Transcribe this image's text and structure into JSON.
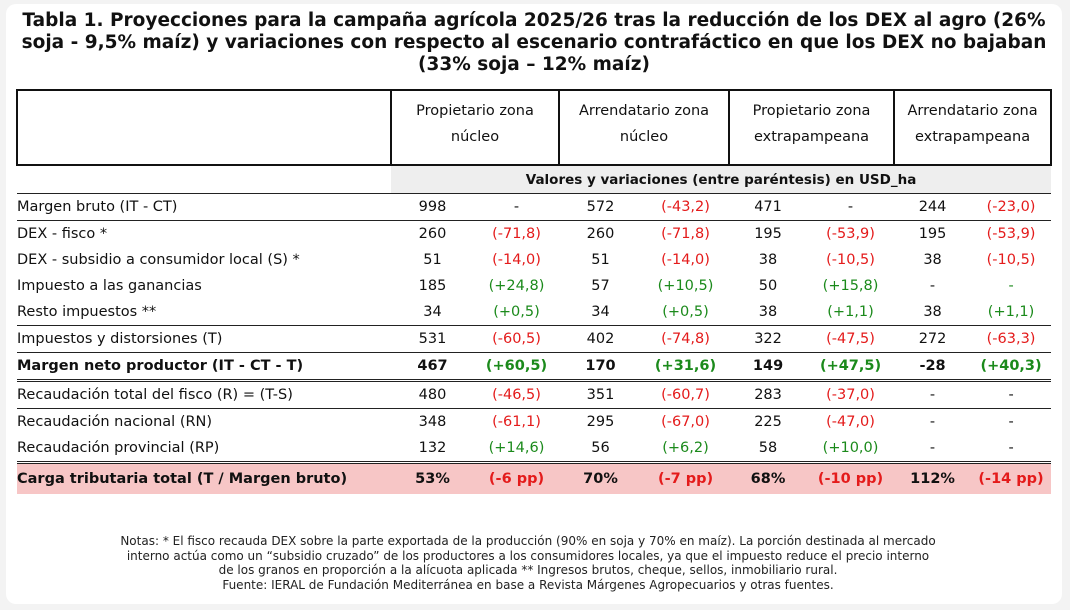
{
  "title": "Tabla 1. Proyecciones para la campaña agrícola 2025/26 tras la reducción de los DEX al agro (26% soja - 9,5% maíz) y variaciones con respecto al escenario contrafáctico en que los DEX no bajaban (33% soja – 12% maíz)",
  "columns": [
    {
      "line1": "Propietario zona",
      "line2": "núcleo"
    },
    {
      "line1": "Arrendatario zona",
      "line2": "núcleo"
    },
    {
      "line1": "Propietario zona",
      "line2": "extrapampeana"
    },
    {
      "line1": "Arrendatario zona",
      "line2": "extrapampeana"
    }
  ],
  "units_label": "Valores y variaciones (entre paréntesis) en USD_ha",
  "rows": [
    {
      "label": "Margen bruto (IT - CT)",
      "cells": [
        "998",
        "-",
        "572",
        "(-43,2)",
        "471",
        "-",
        "244",
        "(-23,0)"
      ]
    },
    {
      "label": "DEX - fisco *",
      "cells": [
        "260",
        "(-71,8)",
        "260",
        "(-71,8)",
        "195",
        "(-53,9)",
        "195",
        "(-53,9)"
      ]
    },
    {
      "label": "DEX - subsidio a consumidor local (S) *",
      "cells": [
        "51",
        "(-14,0)",
        "51",
        "(-14,0)",
        "38",
        "(-10,5)",
        "38",
        "(-10,5)"
      ]
    },
    {
      "label": "Impuesto a las ganancias",
      "cells": [
        "185",
        "(+24,8)",
        "57",
        "(+10,5)",
        "50",
        "(+15,8)",
        "-",
        "-"
      ]
    },
    {
      "label": "Resto impuestos **",
      "cells": [
        "34",
        "(+0,5)",
        "34",
        "(+0,5)",
        "38",
        "(+1,1)",
        "38",
        "(+1,1)"
      ]
    },
    {
      "label": "Impuestos y distorsiones (T)",
      "cells": [
        "531",
        "(-60,5)",
        "402",
        "(-74,8)",
        "322",
        "(-47,5)",
        "272",
        "(-63,3)"
      ]
    },
    {
      "label": "Margen neto productor (IT - CT - T)",
      "cells": [
        "467",
        "(+60,5)",
        "170",
        "(+31,6)",
        "149",
        "(+47,5)",
        "-28",
        "(+40,3)"
      ]
    },
    {
      "label": "Recaudación total del fisco (R) = (T-S)",
      "cells": [
        "480",
        "(-46,5)",
        "351",
        "(-60,7)",
        "283",
        "(-37,0)",
        "-",
        "-"
      ]
    },
    {
      "label": "Recaudación nacional (RN)",
      "cells": [
        "348",
        "(-61,1)",
        "295",
        "(-67,0)",
        "225",
        "(-47,0)",
        "-",
        "-"
      ]
    },
    {
      "label": "Recaudación provincial (RP)",
      "cells": [
        "132",
        "(+14,6)",
        "56",
        "(+6,2)",
        "58",
        "(+10,0)",
        "-",
        "-"
      ]
    },
    {
      "label": "Carga tributaria total (T / Margen bruto)",
      "cells": [
        "53%",
        "(-6 pp)",
        "70%",
        "(-7 pp)",
        "68%",
        "(-10 pp)",
        "112%",
        "(-14 pp)"
      ]
    }
  ],
  "notes": {
    "line1": "Notas: * El fisco recauda DEX sobre la parte exportada de la producción (90% en soja y 70% en maíz). La porción destinada al mercado",
    "line2": "interno actúa como un “subsidio cruzado” de los productores a los consumidores locales, ya que el impuesto reduce el precio interno",
    "line3": "de los granos en proporción a la alícuota aplicada ** Ingresos brutos, cheque, sellos, inmobiliario rural.",
    "source": "Fuente: IERAL de Fundación Mediterránea en base a Revista Márgenes Agropecuarios y otras fuentes."
  },
  "colors": {
    "negative": "#e41b1b",
    "positive": "#1b8a1b",
    "highlight_row": "#f7c6c6",
    "units_band": "#eeeeee"
  }
}
